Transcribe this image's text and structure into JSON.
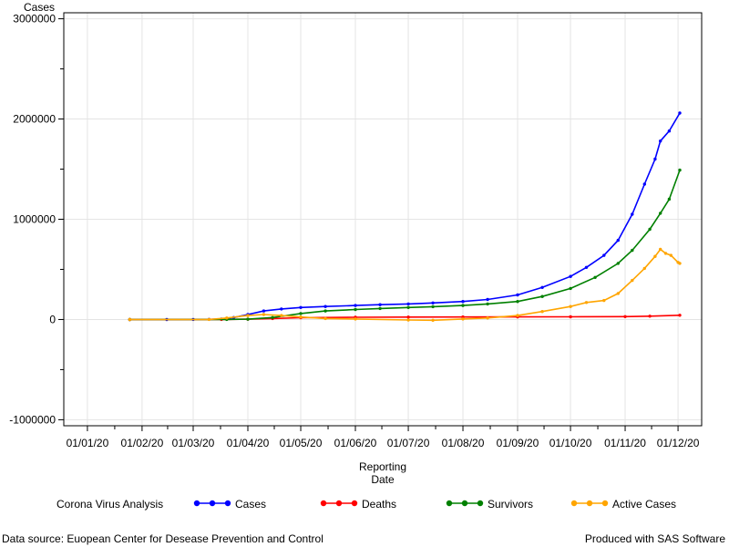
{
  "chart_data": {
    "type": "line",
    "ylabel": "Cases",
    "xlabel_line1": "Reporting",
    "xlabel_line2": "Date",
    "ylim": [
      -1000000,
      3000000
    ],
    "yticks": [
      -1000000,
      0,
      1000000,
      2000000,
      3000000
    ],
    "ytick_labels": [
      "-1000000",
      "0",
      "1000000",
      "2000000",
      "3000000"
    ],
    "x_start": "2020-01-01",
    "x_end": "2020-12-01",
    "xticks": [
      "2020-01-01",
      "2020-02-01",
      "2020-03-01",
      "2020-04-01",
      "2020-05-01",
      "2020-06-01",
      "2020-07-01",
      "2020-08-01",
      "2020-09-01",
      "2020-10-01",
      "2020-11-01",
      "2020-12-01"
    ],
    "xtick_labels": [
      "01/01/20",
      "01/02/20",
      "01/03/20",
      "01/04/20",
      "01/05/20",
      "01/06/20",
      "01/07/20",
      "01/08/20",
      "01/09/20",
      "01/10/20",
      "01/11/20",
      "01/12/20"
    ],
    "grid": true,
    "legend_title": "Corona Virus Analysis",
    "legend_position": "bottom",
    "series": [
      {
        "name": "Cases",
        "color": "#0000ff",
        "points": [
          [
            "2020-01-25",
            0
          ],
          [
            "2020-02-15",
            0
          ],
          [
            "2020-03-01",
            100
          ],
          [
            "2020-03-10",
            1000
          ],
          [
            "2020-03-17",
            5000
          ],
          [
            "2020-03-24",
            20000
          ],
          [
            "2020-04-01",
            50000
          ],
          [
            "2020-04-10",
            85000
          ],
          [
            "2020-04-20",
            105000
          ],
          [
            "2020-05-01",
            120000
          ],
          [
            "2020-05-15",
            130000
          ],
          [
            "2020-06-01",
            140000
          ],
          [
            "2020-06-15",
            148000
          ],
          [
            "2020-07-01",
            155000
          ],
          [
            "2020-07-15",
            165000
          ],
          [
            "2020-08-01",
            180000
          ],
          [
            "2020-08-15",
            200000
          ],
          [
            "2020-09-01",
            245000
          ],
          [
            "2020-09-15",
            320000
          ],
          [
            "2020-10-01",
            430000
          ],
          [
            "2020-10-10",
            520000
          ],
          [
            "2020-10-20",
            640000
          ],
          [
            "2020-10-28",
            790000
          ],
          [
            "2020-11-05",
            1050000
          ],
          [
            "2020-11-12",
            1350000
          ],
          [
            "2020-11-18",
            1600000
          ],
          [
            "2020-11-21",
            1780000
          ],
          [
            "2020-11-26",
            1880000
          ],
          [
            "2020-12-02",
            2060000
          ]
        ]
      },
      {
        "name": "Deaths",
        "color": "#ff0000",
        "points": [
          [
            "2020-01-25",
            0
          ],
          [
            "2020-03-17",
            100
          ],
          [
            "2020-04-01",
            3000
          ],
          [
            "2020-04-15",
            10000
          ],
          [
            "2020-05-01",
            18000
          ],
          [
            "2020-06-01",
            22000
          ],
          [
            "2020-07-01",
            24000
          ],
          [
            "2020-08-01",
            25000
          ],
          [
            "2020-09-01",
            26000
          ],
          [
            "2020-10-01",
            27000
          ],
          [
            "2020-11-01",
            29000
          ],
          [
            "2020-11-15",
            33000
          ],
          [
            "2020-12-02",
            42000
          ]
        ]
      },
      {
        "name": "Survivors",
        "color": "#008000",
        "points": [
          [
            "2020-01-25",
            0
          ],
          [
            "2020-03-20",
            500
          ],
          [
            "2020-04-01",
            3000
          ],
          [
            "2020-04-15",
            20000
          ],
          [
            "2020-05-01",
            60000
          ],
          [
            "2020-05-15",
            85000
          ],
          [
            "2020-06-01",
            100000
          ],
          [
            "2020-06-15",
            110000
          ],
          [
            "2020-07-01",
            120000
          ],
          [
            "2020-07-15",
            128000
          ],
          [
            "2020-08-01",
            140000
          ],
          [
            "2020-08-15",
            155000
          ],
          [
            "2020-09-01",
            180000
          ],
          [
            "2020-09-15",
            230000
          ],
          [
            "2020-10-01",
            310000
          ],
          [
            "2020-10-15",
            420000
          ],
          [
            "2020-10-28",
            560000
          ],
          [
            "2020-11-05",
            690000
          ],
          [
            "2020-11-15",
            900000
          ],
          [
            "2020-11-21",
            1060000
          ],
          [
            "2020-11-26",
            1200000
          ],
          [
            "2020-12-02",
            1490000
          ]
        ]
      },
      {
        "name": "Active Cases",
        "color": "#ffa500",
        "points": [
          [
            "2020-01-25",
            0
          ],
          [
            "2020-03-10",
            500
          ],
          [
            "2020-03-20",
            15000
          ],
          [
            "2020-04-01",
            40000
          ],
          [
            "2020-04-10",
            50000
          ],
          [
            "2020-04-20",
            40000
          ],
          [
            "2020-05-01",
            25000
          ],
          [
            "2020-05-15",
            10000
          ],
          [
            "2020-06-01",
            5000
          ],
          [
            "2020-07-01",
            -5000
          ],
          [
            "2020-07-15",
            -8000
          ],
          [
            "2020-08-01",
            5000
          ],
          [
            "2020-08-15",
            15000
          ],
          [
            "2020-09-01",
            40000
          ],
          [
            "2020-09-15",
            80000
          ],
          [
            "2020-10-01",
            130000
          ],
          [
            "2020-10-10",
            170000
          ],
          [
            "2020-10-20",
            190000
          ],
          [
            "2020-10-28",
            260000
          ],
          [
            "2020-11-05",
            390000
          ],
          [
            "2020-11-12",
            510000
          ],
          [
            "2020-11-18",
            630000
          ],
          [
            "2020-11-21",
            700000
          ],
          [
            "2020-11-24",
            660000
          ],
          [
            "2020-11-27",
            640000
          ],
          [
            "2020-12-01",
            570000
          ],
          [
            "2020-12-02",
            560000
          ]
        ]
      }
    ]
  },
  "footer": {
    "left": "Data source: Euopean Center for Desease Prevention and Control",
    "right": "Produced with SAS Software"
  }
}
